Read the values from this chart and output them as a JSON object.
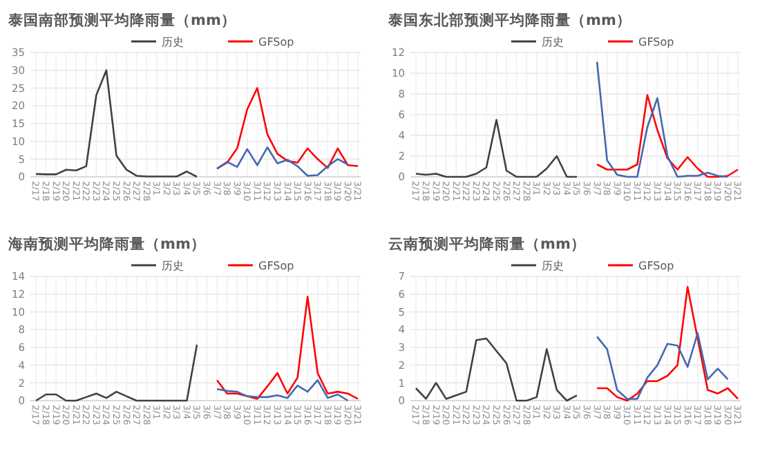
{
  "chart_data": [
    {
      "type": "line",
      "title": "泰国南部预测平均降雨量（mm）",
      "categories": [
        "2/17",
        "2/18",
        "2/19",
        "2/20",
        "2/21",
        "2/22",
        "2/23",
        "2/24",
        "2/25",
        "2/26",
        "2/27",
        "2/28",
        "3/1",
        "3/2",
        "3/3",
        "3/4",
        "3/5",
        "3/6",
        "3/7",
        "3/8",
        "3/9",
        "3/10",
        "3/11",
        "3/12",
        "3/13",
        "3/14",
        "3/15",
        "3/16",
        "3/17",
        "3/18",
        "3/19",
        "3/20",
        "3/21"
      ],
      "ylim": [
        0,
        35
      ],
      "yticks": [
        0,
        5,
        10,
        15,
        20,
        25,
        30,
        35
      ],
      "grid": true,
      "legend": "top",
      "marker": "none",
      "line_style": "solid",
      "series": [
        {
          "name": "历史",
          "color": "#404040",
          "values": [
            0.8,
            0.7,
            0.7,
            2,
            1.8,
            3,
            23,
            30,
            6,
            2,
            0.3,
            0.1,
            0.1,
            0.1,
            0.1,
            1.5,
            0,
            null,
            null,
            null,
            null,
            null,
            null,
            null,
            null,
            null,
            null,
            null,
            null,
            null,
            null,
            null,
            null
          ]
        },
        {
          "name": "GFSop",
          "color": "#ff0000",
          "values": [
            null,
            null,
            null,
            null,
            null,
            null,
            null,
            null,
            null,
            null,
            null,
            null,
            null,
            null,
            null,
            null,
            null,
            null,
            2.3,
            4,
            8,
            19,
            25,
            12,
            6.5,
            4.5,
            4,
            8,
            5,
            2.5,
            8,
            3.3,
            3
          ]
        },
        {
          "color": "#4468b0",
          "values": [
            null,
            null,
            null,
            null,
            null,
            null,
            null,
            null,
            null,
            null,
            null,
            null,
            null,
            null,
            null,
            null,
            null,
            null,
            2.3,
            4.2,
            2.8,
            7.8,
            3.3,
            8.3,
            3.8,
            4.8,
            3,
            0.3,
            0.5,
            3,
            5,
            3.5,
            null
          ]
        }
      ]
    },
    {
      "type": "line",
      "title": "泰国东北部预测平均降雨量（mm）",
      "categories": [
        "2/17",
        "2/18",
        "2/19",
        "2/20",
        "2/21",
        "2/22",
        "2/23",
        "2/24",
        "2/25",
        "2/26",
        "2/27",
        "2/28",
        "3/1",
        "3/2",
        "3/3",
        "3/4",
        "3/5",
        "3/6",
        "3/7",
        "3/8",
        "3/9",
        "3/10",
        "3/11",
        "3/12",
        "3/13",
        "3/14",
        "3/15",
        "3/16",
        "3/17",
        "3/18",
        "3/19",
        "3/20",
        "3/21"
      ],
      "ylim": [
        0,
        12
      ],
      "yticks": [
        0,
        2,
        4,
        6,
        8,
        10,
        12
      ],
      "grid": true,
      "legend": "top",
      "marker": "none",
      "line_style": "solid",
      "series": [
        {
          "name": "历史",
          "color": "#404040",
          "values": [
            0.3,
            0.2,
            0.3,
            0,
            0,
            0,
            0.3,
            0.9,
            5.5,
            0.6,
            0,
            0,
            0,
            0.8,
            2,
            0,
            0,
            null,
            null,
            null,
            null,
            null,
            null,
            null,
            null,
            null,
            null,
            null,
            null,
            null,
            null,
            null,
            null
          ]
        },
        {
          "name": "GFSop",
          "color": "#ff0000",
          "values": [
            null,
            null,
            null,
            null,
            null,
            null,
            null,
            null,
            null,
            null,
            null,
            null,
            null,
            null,
            null,
            null,
            null,
            null,
            1.2,
            0.7,
            0.7,
            0.7,
            1.2,
            7.9,
            4.5,
            1.8,
            0.7,
            1.9,
            0.8,
            0,
            0,
            0.1,
            0.7
          ]
        },
        {
          "color": "#4468b0",
          "values": [
            null,
            null,
            null,
            null,
            null,
            null,
            null,
            null,
            null,
            null,
            null,
            null,
            null,
            null,
            null,
            null,
            null,
            null,
            11.1,
            1.6,
            0.2,
            0,
            0,
            4.8,
            7.6,
            2,
            0,
            0.1,
            0.1,
            0.4,
            0.1,
            0,
            null
          ]
        }
      ]
    },
    {
      "type": "line",
      "title": "海南预测平均降雨量（mm）",
      "categories": [
        "2/17",
        "2/18",
        "2/19",
        "2/20",
        "2/21",
        "2/22",
        "2/23",
        "2/24",
        "2/25",
        "2/26",
        "2/27",
        "2/28",
        "3/1",
        "3/2",
        "3/3",
        "3/4",
        "3/5",
        "3/6",
        "3/7",
        "3/8",
        "3/9",
        "3/10",
        "3/11",
        "3/12",
        "3/13",
        "3/14",
        "3/15",
        "3/16",
        "3/17",
        "3/18",
        "3/19",
        "3/20",
        "3/21"
      ],
      "ylim": [
        0,
        14
      ],
      "yticks": [
        0,
        2,
        4,
        6,
        8,
        10,
        12,
        14
      ],
      "grid": true,
      "legend": "top",
      "marker": "none",
      "line_style": "solid",
      "series": [
        {
          "name": "历史",
          "color": "#404040",
          "values": [
            0,
            0.7,
            0.7,
            0,
            0,
            0.4,
            0.8,
            0.3,
            1,
            0.5,
            0,
            0,
            0,
            0,
            0,
            0,
            6.3,
            null,
            null,
            null,
            null,
            null,
            null,
            null,
            null,
            null,
            null,
            null,
            null,
            null,
            null,
            null,
            null
          ]
        },
        {
          "name": "GFSop",
          "color": "#ff0000",
          "values": [
            null,
            null,
            null,
            null,
            null,
            null,
            null,
            null,
            null,
            null,
            null,
            null,
            null,
            null,
            null,
            null,
            null,
            null,
            2.3,
            0.8,
            0.8,
            0.5,
            0.2,
            1.6,
            3.1,
            0.8,
            2.6,
            11.7,
            3.1,
            0.8,
            1,
            0.8,
            0.2
          ]
        },
        {
          "color": "#4468b0",
          "values": [
            null,
            null,
            null,
            null,
            null,
            null,
            null,
            null,
            null,
            null,
            null,
            null,
            null,
            null,
            null,
            null,
            null,
            null,
            1.3,
            1.1,
            1,
            0.5,
            0.4,
            0.4,
            0.6,
            0.3,
            1.7,
            1,
            2.3,
            0.3,
            0.7,
            0,
            null
          ]
        }
      ]
    },
    {
      "type": "line",
      "title": "云南预测平均降雨量（mm）",
      "categories": [
        "2/17",
        "2/18",
        "2/19",
        "2/20",
        "2/21",
        "2/22",
        "2/23",
        "2/24",
        "2/25",
        "2/26",
        "2/27",
        "2/28",
        "3/1",
        "3/2",
        "3/3",
        "3/4",
        "3/5",
        "3/6",
        "3/7",
        "3/8",
        "3/9",
        "3/10",
        "3/11",
        "3/12",
        "3/13",
        "3/14",
        "3/15",
        "3/16",
        "3/17",
        "3/18",
        "3/19",
        "3/20",
        "3/21"
      ],
      "ylim": [
        0,
        7
      ],
      "yticks": [
        0,
        1,
        2,
        3,
        4,
        5,
        6,
        7
      ],
      "grid": true,
      "legend": "top",
      "marker": "none",
      "line_style": "solid",
      "series": [
        {
          "name": "历史",
          "color": "#404040",
          "values": [
            0.7,
            0.1,
            1,
            0.1,
            0.3,
            0.5,
            3.4,
            3.5,
            2.8,
            2.1,
            0,
            0,
            0.2,
            2.9,
            0.6,
            0,
            0.3,
            null,
            null,
            null,
            null,
            null,
            null,
            null,
            null,
            null,
            null,
            null,
            null,
            null,
            null,
            null,
            null
          ]
        },
        {
          "name": "GFSop",
          "color": "#ff0000",
          "values": [
            null,
            null,
            null,
            null,
            null,
            null,
            null,
            null,
            null,
            null,
            null,
            null,
            null,
            null,
            null,
            null,
            null,
            null,
            0.7,
            0.7,
            0.2,
            0,
            0.4,
            1.1,
            1.1,
            1.4,
            2,
            6.4,
            3.5,
            0.6,
            0.4,
            0.7,
            0.1
          ]
        },
        {
          "color": "#4468b0",
          "values": [
            null,
            null,
            null,
            null,
            null,
            null,
            null,
            null,
            null,
            null,
            null,
            null,
            null,
            null,
            null,
            null,
            null,
            null,
            3.6,
            2.9,
            0.6,
            0.1,
            0.1,
            1.3,
            2,
            3.2,
            3.1,
            1.9,
            3.8,
            1.2,
            1.8,
            1.2,
            null
          ]
        }
      ]
    }
  ]
}
